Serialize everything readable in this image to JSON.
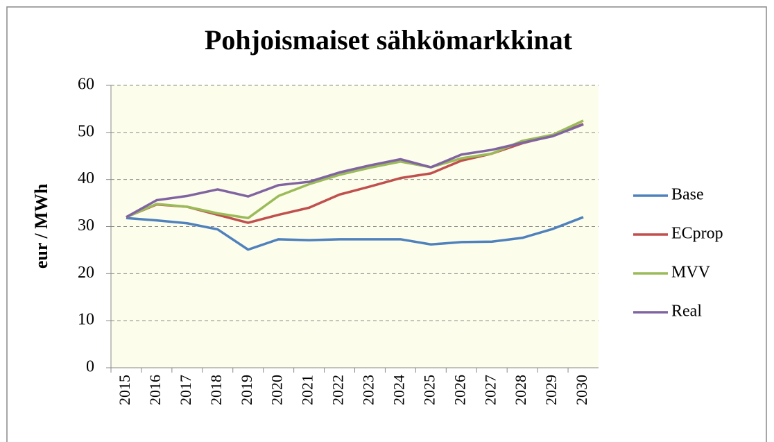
{
  "chart_data": {
    "type": "line",
    "title": "Pohjoismaiset sähkömarkkinat",
    "y_label": "eur / MWh",
    "categories": [
      "2015",
      "2016",
      "2017",
      "2018",
      "2019",
      "2020",
      "2021",
      "2022",
      "2023",
      "2024",
      "2025",
      "2026",
      "2027",
      "2028",
      "2029",
      "2030"
    ],
    "series": [
      {
        "name": "Base",
        "color": "#4f81bd",
        "values": [
          31.8,
          31.3,
          30.7,
          29.4,
          25.1,
          27.3,
          27.1,
          27.3,
          27.3,
          27.3,
          26.2,
          26.7,
          26.8,
          27.6,
          29.5,
          32.0
        ]
      },
      {
        "name": "ECprop",
        "color": "#c0504d",
        "values": [
          32.0,
          34.7,
          34.2,
          32.5,
          30.8,
          32.5,
          34.0,
          36.8,
          38.5,
          40.3,
          41.3,
          44.0,
          45.5,
          47.7,
          49.3,
          51.8
        ]
      },
      {
        "name": "MVV",
        "color": "#9bbb59",
        "values": [
          32.0,
          34.8,
          34.2,
          32.8,
          31.8,
          36.5,
          39.0,
          41.0,
          42.5,
          43.8,
          42.6,
          44.5,
          45.5,
          48.2,
          49.5,
          52.5
        ]
      },
      {
        "name": "Real",
        "color": "#8064a2",
        "values": [
          32.0,
          35.6,
          36.5,
          37.9,
          36.4,
          38.8,
          39.5,
          41.5,
          43.0,
          44.3,
          42.6,
          45.3,
          46.3,
          47.8,
          49.2,
          51.7
        ]
      }
    ],
    "ylim": [
      0,
      60
    ],
    "yticks": [
      0,
      10,
      20,
      30,
      40,
      50,
      60
    ],
    "grid": true,
    "legend": "right"
  }
}
